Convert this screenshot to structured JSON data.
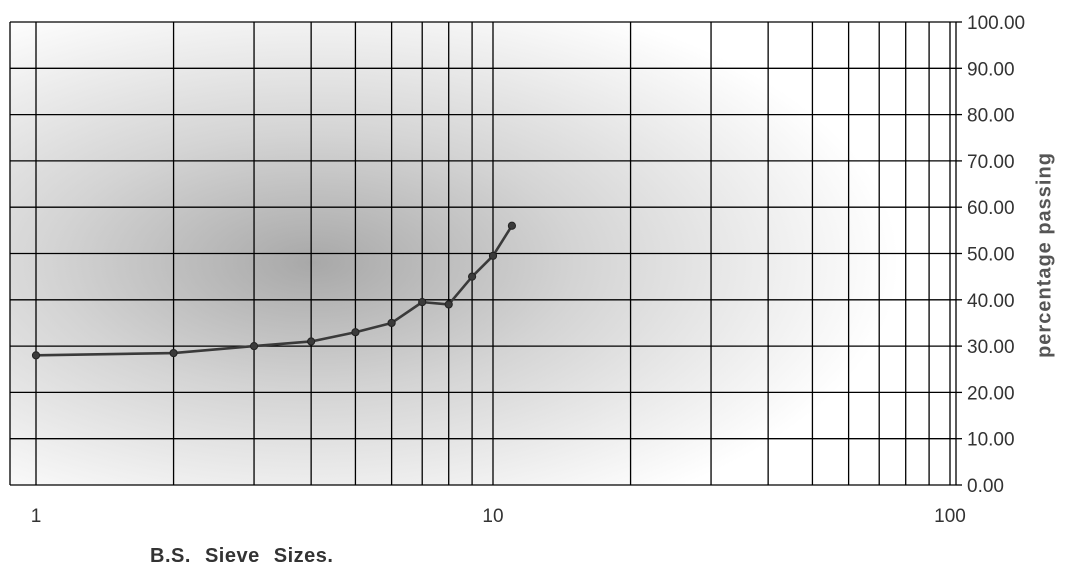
{
  "chart_data": {
    "type": "line",
    "xscale": "log",
    "xlim": [
      1,
      100
    ],
    "ylim": [
      0,
      100
    ],
    "xticks": [
      "1",
      "10",
      "100"
    ],
    "yticks": [
      "0.00",
      "10.00",
      "20.00",
      "30.00",
      "40.00",
      "50.00",
      "60.00",
      "70.00",
      "80.00",
      "90.00",
      "100.00"
    ],
    "xlabel": "B.S.  Sieve Sizes.",
    "ylabel": "percentage passing",
    "grid": true,
    "series": [
      {
        "x": [
          1,
          2,
          3,
          4,
          5,
          6,
          7,
          8,
          9,
          10,
          11
        ],
        "y": [
          28.0,
          28.5,
          30.0,
          31.0,
          33.0,
          35.0,
          39.5,
          39.0,
          45.0,
          49.5,
          56.0
        ],
        "color": "#3a3a3a"
      }
    ]
  }
}
